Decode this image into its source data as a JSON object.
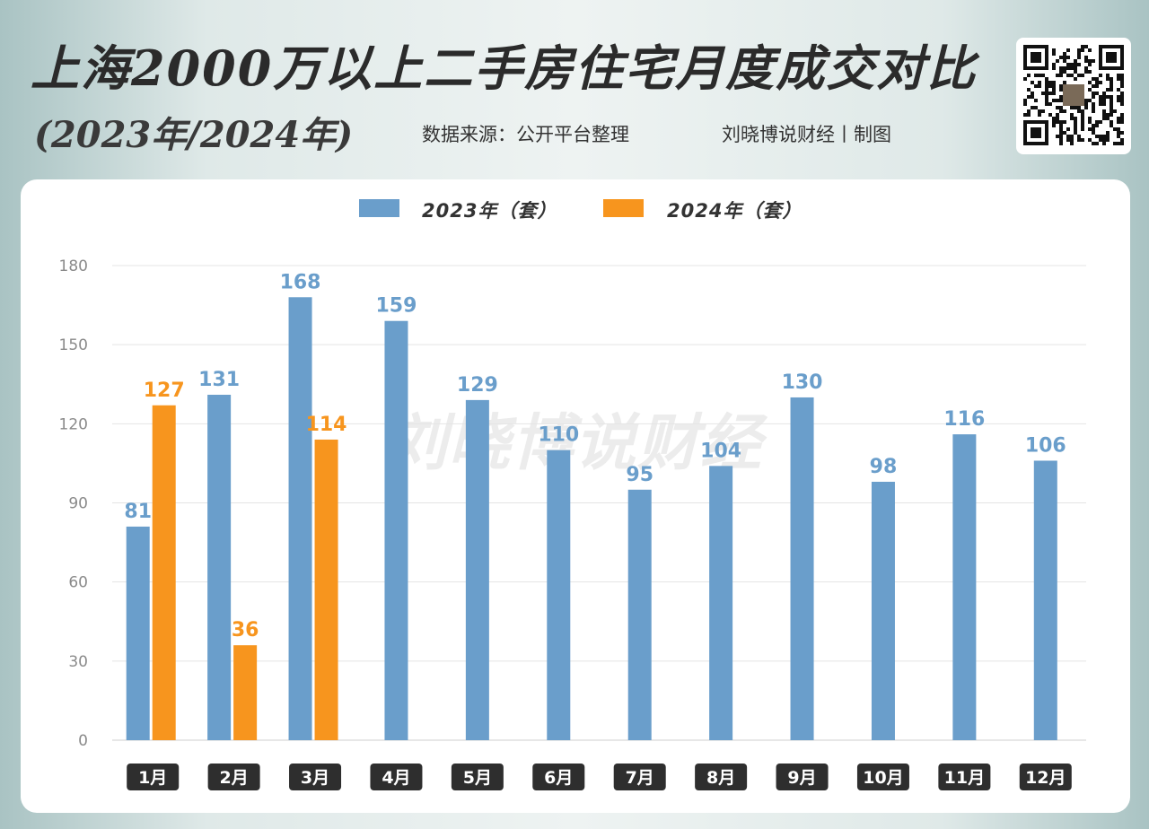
{
  "header": {
    "title": "上海2000万以上二手房住宅月度成交对比",
    "years": "(2023年/2024年)",
    "source": "数据来源：公开平台整理",
    "author": "刘晓博说财经丨制图"
  },
  "watermark": "刘晓博说财经",
  "qr_code": {
    "icon": "qr-code-icon"
  },
  "colors": {
    "series_2023": "#6a9ecb",
    "series_2024": "#f7951e",
    "month_tag_bg": "#2e2e2e"
  },
  "chart_data": {
    "type": "bar",
    "categories": [
      "1月",
      "2月",
      "3月",
      "4月",
      "5月",
      "6月",
      "7月",
      "8月",
      "9月",
      "10月",
      "11月",
      "12月"
    ],
    "series": [
      {
        "name": "2023年（套）",
        "values": [
          81,
          131,
          168,
          159,
          129,
          110,
          95,
          104,
          130,
          98,
          116,
          106
        ]
      },
      {
        "name": "2024年（套）",
        "values": [
          127,
          36,
          114,
          null,
          null,
          null,
          null,
          null,
          null,
          null,
          null,
          null
        ]
      }
    ],
    "yticks": [
      0,
      30,
      60,
      90,
      120,
      150,
      180
    ],
    "ylim": [
      0,
      180
    ],
    "grid": true,
    "legend_position": "top-center",
    "data_labels": true
  }
}
